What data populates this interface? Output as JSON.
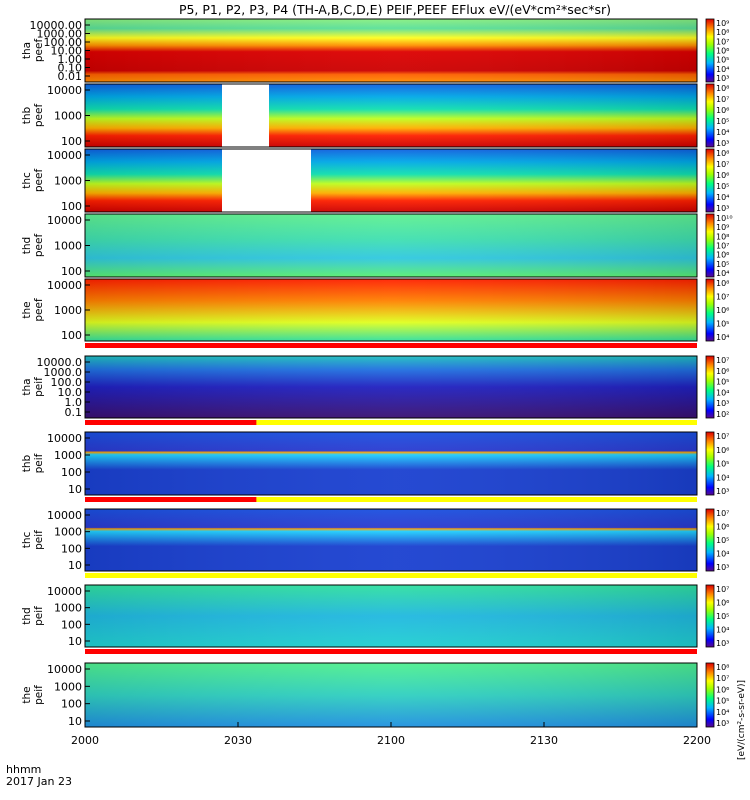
{
  "title": "P5, P1, P2, P3, P4 (TH-A,B,C,D,E) PEIF,PEEF EFlux eV/(eV*cm²*sec*sr)",
  "footer": {
    "time_label": "hhmm",
    "date_label": "2017 Jan 23"
  },
  "colorbar_unit_label": "[eV/(cm²-s-sr-eV)]",
  "chart_data": {
    "type": "heatmap",
    "x_ticks": [
      "2000",
      "2030",
      "2100",
      "2130",
      "2200"
    ],
    "panels": [
      {
        "id": "tha_peef",
        "ylabel": [
          "tha",
          "peef"
        ],
        "y_ticks": [
          "10000.00",
          "1000.00",
          "100.00",
          "10.00",
          "1.00",
          "0.10",
          "0.01"
        ],
        "cbar_ticks": [
          "10⁹",
          "10⁸",
          "10⁷",
          "10⁶",
          "10⁵",
          "10⁴",
          "10³"
        ],
        "bar_below": ""
      },
      {
        "id": "thb_peef",
        "ylabel": [
          "thb",
          "peef"
        ],
        "y_ticks": [
          "10000",
          "1000",
          "100"
        ],
        "cbar_ticks": [
          "10⁸",
          "10⁷",
          "10⁶",
          "10⁵",
          "10⁴",
          "10³"
        ],
        "bar_below": ""
      },
      {
        "id": "thc_peef",
        "ylabel": [
          "thc",
          "peef"
        ],
        "y_ticks": [
          "10000",
          "1000",
          "100"
        ],
        "cbar_ticks": [
          "10⁸",
          "10⁷",
          "10⁶",
          "10⁵",
          "10⁴",
          "10³"
        ],
        "bar_below": ""
      },
      {
        "id": "thd_peef",
        "ylabel": [
          "thd",
          "peef"
        ],
        "y_ticks": [
          "10000",
          "1000",
          "100"
        ],
        "cbar_ticks": [
          "10¹⁰",
          "10⁹",
          "10⁸",
          "10⁷",
          "10⁶",
          "10⁵",
          "10⁴"
        ],
        "bar_below": ""
      },
      {
        "id": "the_peef",
        "ylabel": [
          "the",
          "peef"
        ],
        "y_ticks": [
          "10000",
          "1000",
          "100"
        ],
        "cbar_ticks": [
          "10⁸",
          "10⁷",
          "10⁶",
          "10⁵",
          "10⁴"
        ],
        "bar_below": "red"
      },
      {
        "id": "tha_peif",
        "ylabel": [
          "tha",
          "peif"
        ],
        "y_ticks": [
          "10000.0",
          "1000.0",
          "100.0",
          "10.0",
          "1.0",
          "0.1"
        ],
        "cbar_ticks": [
          "10⁷",
          "10⁶",
          "10⁵",
          "10⁴",
          "10³",
          "10²"
        ],
        "bar_below": "red_partial"
      },
      {
        "id": "thb_peif",
        "ylabel": [
          "thb",
          "peif"
        ],
        "y_ticks": [
          "10000",
          "1000",
          "100",
          "10"
        ],
        "cbar_ticks": [
          "10⁷",
          "10⁶",
          "10⁵",
          "10⁴",
          "10³"
        ],
        "bar_below": "red_partial"
      },
      {
        "id": "thc_peif",
        "ylabel": [
          "thc",
          "peif"
        ],
        "y_ticks": [
          "10000",
          "1000",
          "100",
          "10"
        ],
        "cbar_ticks": [
          "10⁷",
          "10⁶",
          "10⁵",
          "10⁴",
          "10³"
        ],
        "bar_below": "yellow"
      },
      {
        "id": "thd_peif",
        "ylabel": [
          "thd",
          "peif"
        ],
        "y_ticks": [
          "10000",
          "1000",
          "100",
          "10"
        ],
        "cbar_ticks": [
          "10⁷",
          "10⁶",
          "10⁵",
          "10⁴",
          "10³"
        ],
        "bar_below": "red"
      },
      {
        "id": "the_peif",
        "ylabel": [
          "the",
          "peif"
        ],
        "y_ticks": [
          "10000",
          "1000",
          "100",
          "10"
        ],
        "cbar_ticks": [
          "10⁸",
          "10⁷",
          "10⁶",
          "10⁵",
          "10⁴",
          "10³"
        ],
        "bar_below": ""
      }
    ]
  }
}
